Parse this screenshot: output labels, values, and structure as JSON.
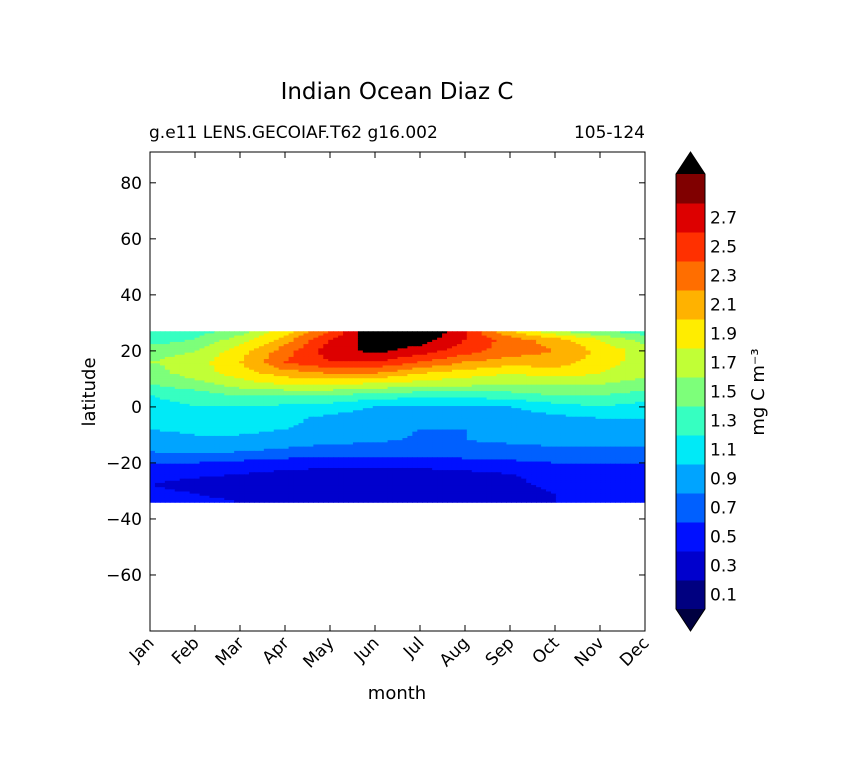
{
  "chart_data": {
    "type": "heatmap",
    "subtype": "filled-contour",
    "title": "Indian Ocean Diaz C",
    "subtitle_left": "g.e11 LENS.GECOIAF.T62 g16.002",
    "subtitle_right": "105-124",
    "xlabel": "month",
    "ylabel": "latitude",
    "x_ticks": [
      "Jan",
      "Feb",
      "Mar",
      "Apr",
      "May",
      "Jun",
      "Jul",
      "Aug",
      "Sep",
      "Oct",
      "Nov",
      "Dec"
    ],
    "xlim": [
      0,
      11
    ],
    "ylim": [
      -80,
      91
    ],
    "y_ticks": [
      80,
      60,
      40,
      20,
      0,
      -20,
      -40,
      -60
    ],
    "y_tick_labels": [
      "80",
      "60",
      "40",
      "20",
      "0",
      "−20",
      "−40",
      "−60"
    ],
    "data_lat_range": [
      -34,
      27
    ],
    "colorbar": {
      "label": "mg C m⁻³",
      "levels": [
        0.0,
        0.2,
        0.4,
        0.6,
        0.8,
        1.0,
        1.2,
        1.4,
        1.6,
        1.8,
        2.0,
        2.2,
        2.4,
        2.6,
        2.8
      ],
      "tick_labels": [
        "0.1",
        "0.3",
        "0.5",
        "0.7",
        "0.9",
        "1.1",
        "1.3",
        "1.5",
        "1.7",
        "1.9",
        "2.1",
        "2.3",
        "2.5",
        "2.7"
      ],
      "colors": [
        "#000080",
        "#0000cd",
        "#0010ff",
        "#0060ff",
        "#00a4ff",
        "#00eaf7",
        "#36ffc1",
        "#7dff7a",
        "#c1ff36",
        "#ffed00",
        "#ffb200",
        "#ff6e00",
        "#ff3000",
        "#dd0000",
        "#800000"
      ],
      "extend": "both",
      "under_color": "#000040",
      "over_color": "#000000"
    },
    "field": {
      "months": [
        0,
        1,
        2,
        3,
        4,
        5,
        6,
        7,
        8,
        9,
        10,
        11
      ],
      "latitudes": [
        27,
        24,
        20,
        16,
        12,
        8,
        4,
        0,
        -4,
        -8,
        -12,
        -16,
        -20,
        -24,
        -28,
        -31,
        -34
      ],
      "rows": [
        [
          1.2,
          1.3,
          1.5,
          1.9,
          2.4,
          3.0,
          3.1,
          2.6,
          2.0,
          1.6,
          1.4,
          1.3
        ],
        [
          1.3,
          1.4,
          1.7,
          2.1,
          2.6,
          2.95,
          2.9,
          2.6,
          2.3,
          2.1,
          1.8,
          1.5
        ],
        [
          1.5,
          1.6,
          1.9,
          2.3,
          2.7,
          2.85,
          2.7,
          2.5,
          2.3,
          2.2,
          1.95,
          1.7
        ],
        [
          1.6,
          1.7,
          2.0,
          2.4,
          2.6,
          2.6,
          2.4,
          2.2,
          2.1,
          2.1,
          1.9,
          1.7
        ],
        [
          1.5,
          1.7,
          1.9,
          2.1,
          2.2,
          2.2,
          2.0,
          1.9,
          1.8,
          1.9,
          1.8,
          1.65
        ],
        [
          1.4,
          1.5,
          1.7,
          1.8,
          1.8,
          1.75,
          1.7,
          1.65,
          1.6,
          1.6,
          1.6,
          1.5
        ],
        [
          1.2,
          1.3,
          1.4,
          1.4,
          1.4,
          1.3,
          1.25,
          1.25,
          1.3,
          1.4,
          1.4,
          1.3
        ],
        [
          1.1,
          1.2,
          1.2,
          1.15,
          1.1,
          1.0,
          0.95,
          0.95,
          1.0,
          1.1,
          1.2,
          1.1
        ],
        [
          1.0,
          1.1,
          1.1,
          1.05,
          0.95,
          0.9,
          0.85,
          0.85,
          0.9,
          0.95,
          1.0,
          1.0
        ],
        [
          1.0,
          1.05,
          1.05,
          1.0,
          0.95,
          0.85,
          0.8,
          0.8,
          0.85,
          0.9,
          0.95,
          0.95
        ],
        [
          0.9,
          0.95,
          0.95,
          0.9,
          0.85,
          0.82,
          0.78,
          0.8,
          0.82,
          0.85,
          0.85,
          0.85
        ],
        [
          0.8,
          0.85,
          0.8,
          0.75,
          0.7,
          0.7,
          0.7,
          0.72,
          0.75,
          0.75,
          0.75,
          0.75
        ],
        [
          0.6,
          0.6,
          0.55,
          0.5,
          0.48,
          0.48,
          0.5,
          0.52,
          0.55,
          0.6,
          0.6,
          0.6
        ],
        [
          0.5,
          0.45,
          0.4,
          0.35,
          0.3,
          0.3,
          0.3,
          0.35,
          0.4,
          0.45,
          0.5,
          0.5
        ],
        [
          0.4,
          0.3,
          0.25,
          0.22,
          0.22,
          0.22,
          0.22,
          0.25,
          0.35,
          0.45,
          0.5,
          0.45
        ],
        [
          0.5,
          0.4,
          0.3,
          0.28,
          0.25,
          0.25,
          0.25,
          0.22,
          0.3,
          0.4,
          0.5,
          0.5
        ],
        [
          0.6,
          0.5,
          0.4,
          0.35,
          0.3,
          0.3,
          0.3,
          0.25,
          0.3,
          0.4,
          0.55,
          0.6
        ]
      ]
    }
  }
}
